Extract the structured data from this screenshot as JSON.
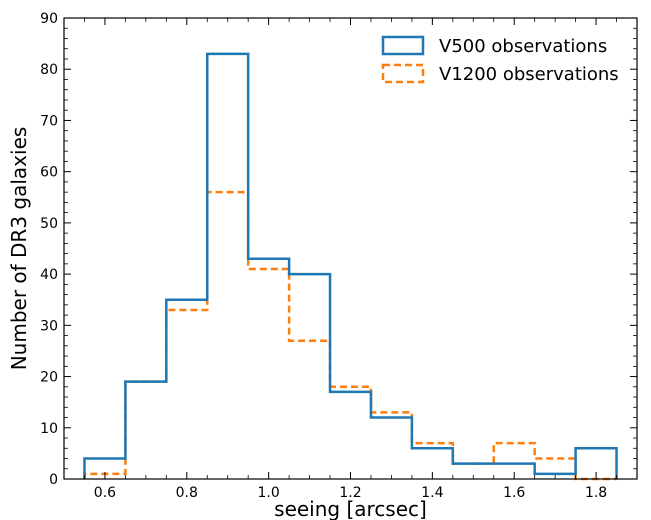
{
  "chart_data": {
    "type": "histogram",
    "xlabel": "seeing [arcsec]",
    "ylabel": "Number of DR3 galaxies",
    "xlim": [
      0.5,
      1.9
    ],
    "ylim": [
      0,
      90
    ],
    "xticks": [
      0.6,
      0.8,
      1.0,
      1.2,
      1.4,
      1.6,
      1.8
    ],
    "xtick_labels": [
      "0.6",
      "0.8",
      "1.0",
      "1.2",
      "1.4",
      "1.6",
      "1.8"
    ],
    "yticks": [
      0,
      10,
      20,
      30,
      40,
      50,
      60,
      70,
      80,
      90
    ],
    "ytick_labels": [
      "0",
      "10",
      "20",
      "30",
      "40",
      "50",
      "60",
      "70",
      "80",
      "90"
    ],
    "bin_edges": [
      0.55,
      0.65,
      0.75,
      0.85,
      0.95,
      1.05,
      1.15,
      1.25,
      1.35,
      1.45,
      1.55,
      1.65,
      1.75,
      1.85
    ],
    "series": [
      {
        "name": "V500 observations",
        "style": "solid",
        "color": "#1f77b4",
        "values": [
          4,
          19,
          35,
          83,
          43,
          40,
          17,
          12,
          6,
          3,
          3,
          1,
          6
        ]
      },
      {
        "name": "V1200 observations",
        "style": "dashed",
        "color": "#ff7f0e",
        "values": [
          1,
          19,
          33,
          56,
          41,
          27,
          18,
          13,
          7,
          3,
          7,
          4,
          0
        ]
      }
    ],
    "legend_position": "top-right",
    "grid": false
  }
}
